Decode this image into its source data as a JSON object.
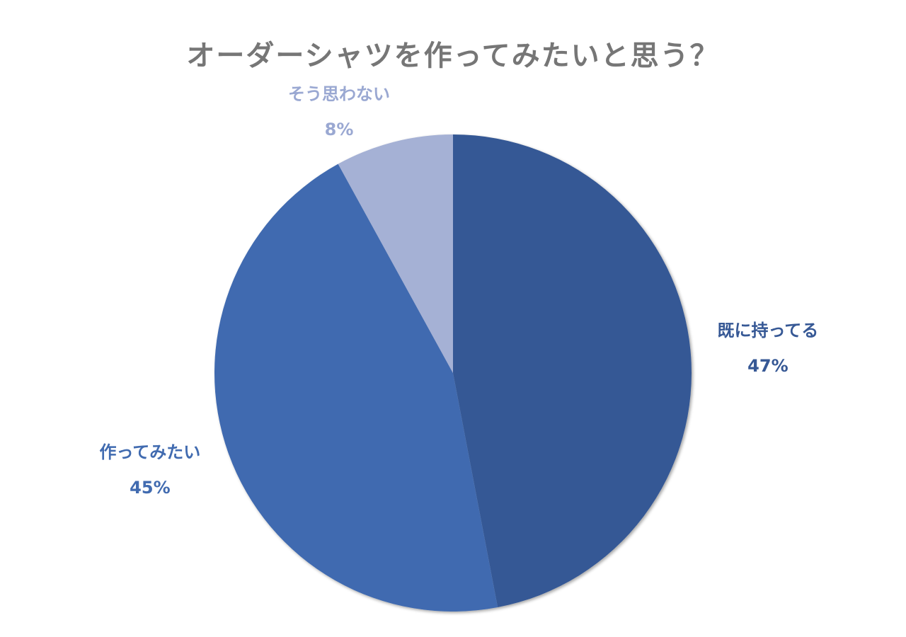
{
  "chart_data": {
    "type": "pie",
    "title": "オーダーシャツを作ってみたいと思う？",
    "slices": [
      {
        "label": "既に持ってる",
        "value": 47,
        "value_label": "47%",
        "color": "#365895",
        "label_color": "#365895"
      },
      {
        "label": "作ってみたい",
        "value": 45,
        "value_label": "45%",
        "color": "#416bb0",
        "label_color": "#416bb0"
      },
      {
        "label": "そう思わない",
        "value": 8,
        "value_label": "8%",
        "color": "#a5b1d5",
        "label_color": "#9aa8d2"
      }
    ],
    "start_angle": "12 o'clock",
    "direction": "clockwise",
    "legend": "none"
  }
}
